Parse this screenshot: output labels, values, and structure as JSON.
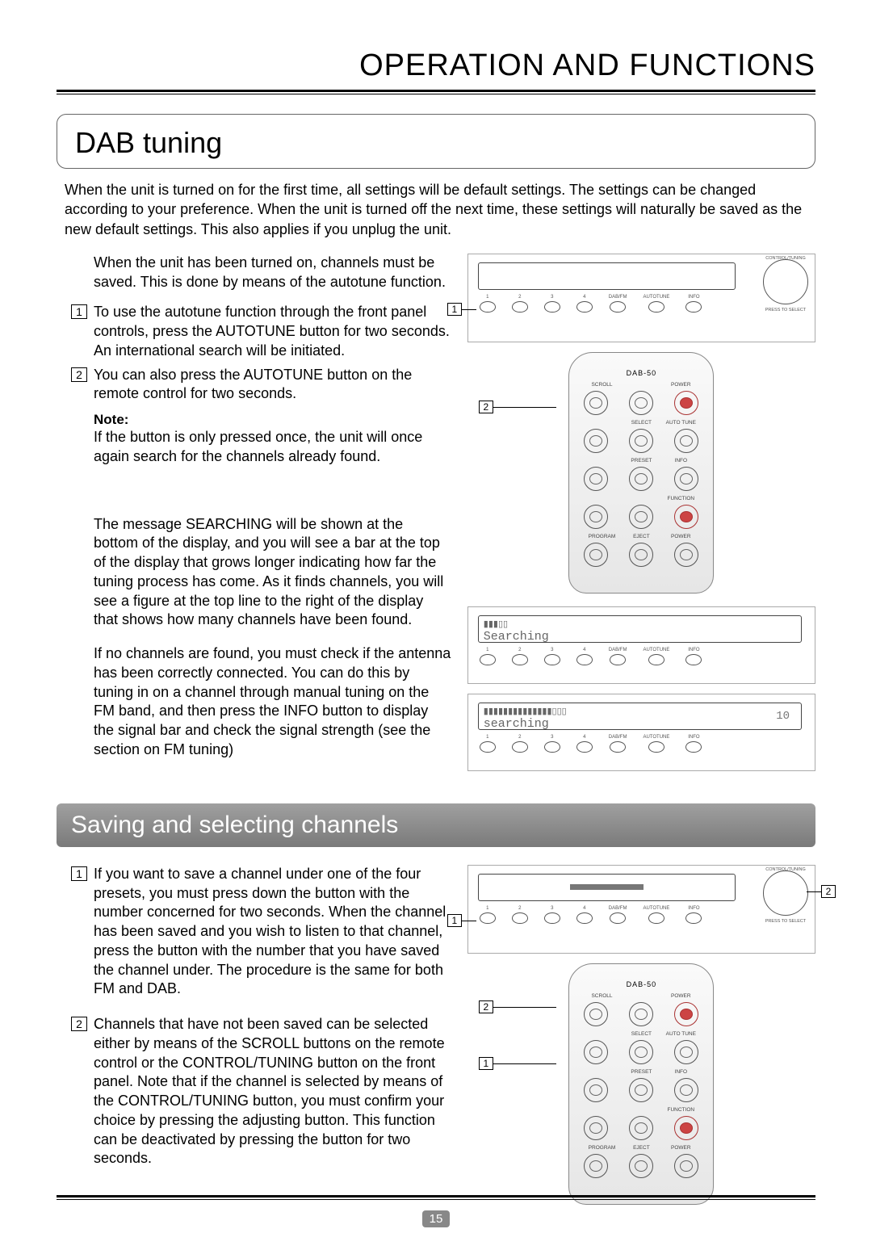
{
  "header": {
    "title": "OPERATION AND FUNCTIONS"
  },
  "page_number": "15",
  "dab": {
    "title": "DAB tuning",
    "intro": "When the unit is turned on for the first time, all settings will be default settings. The settings can be changed according to your preference. When the unit is turned off the next time, these settings will naturally be saved as the new default settings. This also applies if you unplug the unit.",
    "pre_step": "When the unit has been turned on, channels must be saved. This is done by means of the autotune function.",
    "step1": "To use the autotune function through the front panel controls, press the AUTOTUNE button for two seconds. An international search will be initiated.",
    "step2": "You can also press the AUTOTUNE button on the remote control for two seconds.",
    "note_label": "Note:",
    "note": "If the button is only pressed once, the unit will once again search for the channels already found.",
    "para1": "The message SEARCHING will be shown at the bottom of the display, and you will see a bar at the top of the display that grows longer indicating how far the tuning process has come. As it finds channels, you will see a figure at the top line to the right of the display that shows how many channels have been found.",
    "para2": "If no channels are found, you must check if the antenna has been correctly connected. You can do this by tuning in on a channel through manual tuning on the FM band, and then press the INFO button to display the signal bar and check the signal strength (see the section on FM tuning)"
  },
  "panel": {
    "buttons": [
      "1",
      "2",
      "3",
      "4",
      "DAB/FM",
      "AUTOTUNE",
      "INFO"
    ],
    "dial_top": "CONTROL/TUNING",
    "dial_bottom": "PRESS TO SELECT",
    "callout1": "1",
    "callout2": "2"
  },
  "remote": {
    "model": "DAB-50",
    "row1": [
      "SCROLL",
      "",
      "POWER"
    ],
    "row2": [
      "",
      "SELECT",
      "AUTO TUNE"
    ],
    "row3": [
      "",
      "PRESET",
      "INFO"
    ],
    "row4": [
      "",
      "",
      "FUNCTION"
    ],
    "row5": [
      "PROGRAM",
      "EJECT",
      "POWER"
    ]
  },
  "display1": {
    "line1": "▮▮▮▯▯",
    "line2": "Searching"
  },
  "display2": {
    "line1": "▮▮▮▮▮▮▮▮▮▮▮▮▮▮▯▯▯",
    "line2": "searching",
    "count": "10"
  },
  "saving": {
    "title": "Saving and selecting channels",
    "step1": "If you want to save a channel under one of the four presets, you must press down the button with the number concerned for two seconds. When the channel has been saved and you wish to listen to that channel, press the button with the number that you have saved the channel under. The procedure is the same for both FM and DAB.",
    "step2": "Channels that have not been saved can be selected either by means of the SCROLL buttons on the remote control or the CONTROL/TUNING button on the front panel. Note that if the channel is selected by means of the CONTROL/TUNING button, you must confirm your choice by pressing the adjusting button. This function can be deactivated by pressing the button for two seconds."
  }
}
